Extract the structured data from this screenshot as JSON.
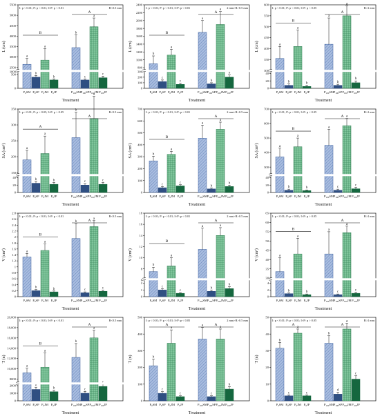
{
  "colors": {
    "sm_fill": "#a9bde0",
    "sm_stroke": "#3a5f9e",
    "sp_fill": "#2f4f82",
    "jm_fill": "#7fc59b",
    "jm_stroke": "#2c7b4f",
    "jp_fill": "#15673f",
    "axis": "#111111"
  },
  "chart_data": [
    {
      "type": "bar",
      "stats_text": "I: p < 0.01; P: p < 0.01; I×P: p < 0.01",
      "range_label": "R<0.5 mm",
      "ylabel": "L (cm)",
      "xlabel": "Treatment",
      "categories": [
        "P0SM",
        "P0SP",
        "P0JM",
        "P0JP",
        "P100SM",
        "P100SP",
        "P100JM",
        "P100JP"
      ],
      "values": [
        2650,
        400,
        2850,
        300,
        3450,
        300,
        4450,
        380
      ],
      "errors": [
        280,
        60,
        550,
        40,
        620,
        40,
        420,
        60
      ],
      "letters": [
        "a",
        "b",
        "a",
        "b",
        "b",
        "c",
        "a",
        "c"
      ],
      "group_letters": [
        "B",
        "A"
      ],
      "yticks": [
        0,
        500,
        1000,
        2500,
        3000,
        3500,
        4000,
        4500,
        5000,
        5500
      ],
      "y_break": [
        600,
        2300
      ]
    },
    {
      "type": "bar",
      "stats_text": "I: p < 0.01; P: p < 0.01; I×P: p < 0.01",
      "range_label": "2 mm>R>0.5 mm",
      "ylabel": "L (cm)",
      "xlabel": "Treatment",
      "categories": [
        "P0SM",
        "P0SP",
        "P0JM",
        "P0JP",
        "P100SM",
        "P100SP",
        "P100JM",
        "P100JP"
      ],
      "values": [
        900,
        120,
        1120,
        70,
        1700,
        80,
        1900,
        200
      ],
      "errors": [
        200,
        30,
        150,
        20,
        300,
        20,
        330,
        40
      ],
      "letters": [
        "b",
        "c",
        "a",
        "c",
        "a",
        "b",
        "a",
        "b"
      ],
      "group_letters": [
        "B",
        "A"
      ],
      "yticks": [
        0,
        100,
        200,
        300,
        800,
        1000,
        1200,
        1400,
        1600,
        1800,
        2000,
        2200,
        2400
      ],
      "y_break": [
        300,
        700
      ]
    },
    {
      "type": "bar",
      "stats_text": "I: p < 0.01; P: p < 0.01; I×P: p < 0.05",
      "range_label": "R>2 mm",
      "ylabel": "L (cm)",
      "xlabel": "Treatment",
      "categories": [
        "P0SM",
        "P0SP",
        "P0JM",
        "P0JP",
        "P100SM",
        "P100SP",
        "P100JM",
        "P100JP"
      ],
      "values": [
        355,
        8,
        410,
        5,
        420,
        8,
        550,
        15
      ],
      "errors": [
        55,
        4,
        75,
        3,
        120,
        3,
        45,
        5
      ],
      "letters": [
        "a",
        "b",
        "a",
        "b",
        "a",
        "b",
        "a",
        "b"
      ],
      "group_letters": [
        "B",
        "A"
      ],
      "yticks": [
        0,
        20,
        40,
        300,
        350,
        400,
        450,
        500,
        550,
        600
      ],
      "y_break": [
        45,
        295
      ]
    },
    {
      "type": "bar",
      "stats_text": "I: p < 0.01; P: p > 0.05; I×P: p > 0.05",
      "range_label": "R<0.5 mm",
      "ylabel": "SA (cm²)",
      "xlabel": "Treatment",
      "categories": [
        "P0SM",
        "P0SP",
        "P0JM",
        "P0JP",
        "P100SM",
        "P100SP",
        "P100JM",
        "P100JP"
      ],
      "values": [
        190,
        25,
        210,
        22,
        260,
        20,
        320,
        22
      ],
      "errors": [
        30,
        5,
        55,
        5,
        80,
        4,
        70,
        5
      ],
      "letters": [
        "a",
        "b",
        "a",
        "b",
        "b",
        "c",
        "a",
        "c"
      ],
      "group_letters": [
        "A",
        "A"
      ],
      "yticks": [
        0,
        20,
        40,
        150,
        200,
        250,
        300,
        350
      ],
      "y_break": [
        45,
        140
      ]
    },
    {
      "type": "bar",
      "stats_text": "I: p < 0.01; P: p < 0.01; I×P: p < 0.01",
      "range_label": "2 mm>R>0.5 mm",
      "ylabel": "SA (cm²)",
      "xlabel": "Treatment",
      "categories": [
        "P0SM",
        "P0SP",
        "P0JM",
        "P0JP",
        "P100SM",
        "P100SP",
        "P100JM",
        "P100JP"
      ],
      "values": [
        265,
        40,
        320,
        55,
        455,
        30,
        530,
        50
      ],
      "errors": [
        40,
        10,
        25,
        10,
        110,
        8,
        60,
        12
      ],
      "letters": [
        "b",
        "c",
        "a",
        "c",
        "a",
        "b",
        "a",
        "b"
      ],
      "group_letters": [
        "B",
        "A"
      ],
      "yticks": [
        0,
        100,
        200,
        300,
        400,
        500,
        600,
        700
      ],
      "y_break": null
    },
    {
      "type": "bar",
      "stats_text": "I: p < 0.01; P: p < 0.01; I×P: p < 0.05",
      "range_label": "R>2 mm",
      "ylabel": "SA (cm²)",
      "xlabel": "Treatment",
      "categories": [
        "P0SM",
        "P0SP",
        "P0JM",
        "P0JP",
        "P100SM",
        "P100SP",
        "P100JM",
        "P100JP"
      ],
      "values": [
        370,
        6,
        440,
        5,
        450,
        6,
        585,
        10
      ],
      "errors": [
        60,
        3,
        60,
        2,
        110,
        3,
        50,
        4
      ],
      "letters": [
        "a",
        "b",
        "a",
        "b",
        "a",
        "c",
        "a",
        "c"
      ],
      "group_letters": [
        "B",
        "A"
      ],
      "yticks": [
        0,
        20,
        40,
        300,
        400,
        500,
        600,
        700
      ],
      "y_break": [
        45,
        240
      ]
    },
    {
      "type": "bar",
      "stats_text": "I: p < 0.01; P: p < 0.01; I×P: p < 0.01",
      "range_label": "R<0.5 mm",
      "ylabel": "V (cm³)",
      "xlabel": "Treatment",
      "categories": [
        "P0SM",
        "P0SP",
        "P0JM",
        "P0JP",
        "P100SM",
        "P100SP",
        "P100JM",
        "P100JP"
      ],
      "values": [
        1.33,
        0.2,
        1.55,
        0.16,
        1.95,
        0.13,
        2.35,
        0.18
      ],
      "errors": [
        0.12,
        0.04,
        0.22,
        0.03,
        0.5,
        0.03,
        0.2,
        0.04
      ],
      "letters": [
        "a",
        "b",
        "a",
        "b",
        "b",
        "c",
        "a",
        "c"
      ],
      "group_letters": [
        "B",
        "A"
      ],
      "yticks": [
        0,
        0.2,
        0.4,
        0.6,
        0.8,
        1.0,
        1.2,
        1.4,
        1.6,
        1.8,
        2.0,
        2.2,
        2.4,
        2.6,
        2.8
      ],
      "y_break": null
    },
    {
      "type": "bar",
      "stats_text": "I: p < 0.01; P: p < 0.01; I×P: p < 0.01",
      "range_label": "2 mm>R>0.5 mm",
      "ylabel": "V (cm³)",
      "xlabel": "Treatment",
      "categories": [
        "P0SM",
        "P0SP",
        "P0JM",
        "P0JP",
        "P100SM",
        "P100SP",
        "P100JM",
        "P100JP"
      ],
      "values": [
        7.5,
        1.0,
        8.5,
        0.5,
        11.5,
        0.8,
        14.0,
        1.2
      ],
      "errors": [
        0.8,
        0.2,
        1.5,
        0.1,
        3.8,
        0.2,
        1.4,
        0.3
      ],
      "letters": [
        "b",
        "c",
        "a",
        "c",
        "a",
        "b",
        "a",
        "b"
      ],
      "group_letters": [
        "B",
        "A"
      ],
      "yticks": [
        0,
        1,
        2,
        6,
        8,
        10,
        12,
        14,
        16,
        18
      ],
      "y_break": [
        2.5,
        6
      ]
    },
    {
      "type": "bar",
      "stats_text": "I: p < 0.01; P: p < 0.01; I×P: p > 0.05",
      "range_label": "R>2 mm",
      "ylabel": "V (cm³)",
      "xlabel": "Treatment",
      "categories": [
        "P0SM",
        "P0SP",
        "P0JM",
        "P0JP",
        "P100SM",
        "P100SP",
        "P100JM",
        "P100JP"
      ],
      "values": [
        33.5,
        0.9,
        43.0,
        0.6,
        43.0,
        0.6,
        54.5,
        1.0
      ],
      "errors": [
        7.5,
        0.2,
        8.5,
        0.2,
        12.0,
        0.2,
        3.5,
        0.3
      ],
      "letters": [
        "a",
        "b",
        "a",
        "b",
        "a",
        "c",
        "a",
        "c"
      ],
      "group_letters": [
        "B",
        "A"
      ],
      "yticks": [
        0,
        2,
        4,
        30,
        35,
        40,
        45,
        50,
        55,
        60,
        65
      ],
      "y_break": [
        5,
        29
      ]
    },
    {
      "type": "bar",
      "stats_text": "I: p < 0.01; P: p < 0.01; I×P: p < 0.01",
      "range_label": "R<0.5 mm",
      "ylabel": "T (n)",
      "xlabel": "Treatment",
      "categories": [
        "P0SM",
        "P0SP",
        "P0JM",
        "P0JP",
        "P100SM",
        "P100SP",
        "P100JM",
        "P100JP"
      ],
      "values": [
        9200,
        1500,
        10300,
        1200,
        12200,
        1000,
        16000,
        1900
      ],
      "errors": [
        900,
        300,
        2800,
        200,
        2700,
        250,
        1500,
        400
      ],
      "letters": [
        "a",
        "b",
        "a",
        "b",
        "b",
        "c",
        "a",
        "c"
      ],
      "group_letters": [
        "B",
        "A"
      ],
      "yticks": [
        0,
        1000,
        2000,
        8000,
        10000,
        12000,
        14000,
        16000,
        18000,
        20000
      ],
      "y_break": [
        2200,
        7000
      ]
    },
    {
      "type": "bar",
      "stats_text": "I: p < 0.01; P: p < 0.01; I×P: p < 0.05",
      "range_label": "2 mm>R>0.5 mm",
      "ylabel": "T (n)",
      "xlabel": "Treatment",
      "categories": [
        "P0SM",
        "P0SP",
        "P0JM",
        "P0JP",
        "P100SM",
        "P100SP",
        "P100JM",
        "P100JP"
      ],
      "values": [
        210,
        45,
        345,
        25,
        370,
        25,
        370,
        70
      ],
      "errors": [
        40,
        10,
        80,
        5,
        70,
        5,
        60,
        15
      ],
      "letters": [
        "b",
        "c",
        "a",
        "c",
        "a",
        "c",
        "a",
        "b"
      ],
      "group_letters": [
        "A",
        "A"
      ],
      "yticks": [
        0,
        100,
        200,
        300,
        400,
        500
      ],
      "y_break": null
    },
    {
      "type": "bar",
      "stats_text": "I: p < 0.01; P: p < 0.01; I×P: p > 0.05",
      "range_label": "R>2 mm",
      "ylabel": "T (n)",
      "xlabel": "Treatment",
      "categories": [
        "P0SM",
        "P0SP",
        "P0JM",
        "P0JP",
        "P100SM",
        "P100SP",
        "P100JM",
        "P100JP"
      ],
      "values": [
        31.5,
        3,
        40.5,
        3,
        34.5,
        4,
        43,
        13
      ],
      "errors": [
        3.5,
        0.5,
        2.5,
        0.5,
        4.5,
        1.2,
        3.5,
        2.0
      ],
      "letters": [
        "b",
        "c",
        "a",
        "c",
        "b",
        "d",
        "a",
        "c"
      ],
      "group_letters": [
        "A",
        "A"
      ],
      "yticks": [
        0,
        10,
        20,
        30,
        40,
        50
      ],
      "y_break": null
    }
  ]
}
